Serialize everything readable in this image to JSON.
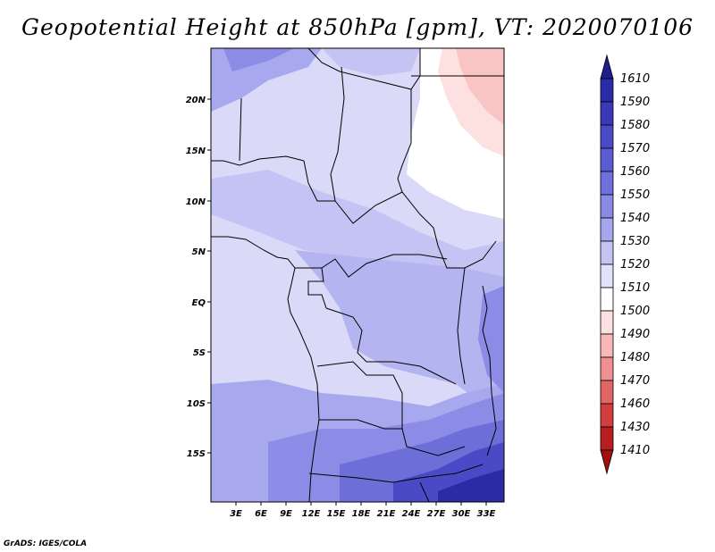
{
  "title": "Geopotential Height at 850hPa [gpm], VT: 2020070106",
  "credit": "GrADS: IGES/COLA",
  "lat_ticks": [
    "20N",
    "15N",
    "10N",
    "5N",
    "EQ",
    "5S",
    "10S",
    "15S"
  ],
  "lon_ticks": [
    "3E",
    "6E",
    "9E",
    "12E",
    "15E",
    "18E",
    "21E",
    "24E",
    "27E",
    "30E",
    "33E"
  ],
  "colorbar": {
    "levels": [
      "1610",
      "1590",
      "1580",
      "1570",
      "1560",
      "1550",
      "1540",
      "1530",
      "1520",
      "1510",
      "1500",
      "1490",
      "1480",
      "1470",
      "1460",
      "1430",
      "1410"
    ],
    "colors": [
      "#1e1e8c",
      "#2b2ba8",
      "#3838b8",
      "#4a4ac6",
      "#5c5cd2",
      "#7070dc",
      "#8a8ae4",
      "#a6a6ec",
      "#c4c4f3",
      "#e2e2fb",
      "#ffffff",
      "#fde0e0",
      "#f8b8b8",
      "#ef9090",
      "#e26666",
      "#d23e3e",
      "#b81e1e",
      "#a01010"
    ]
  },
  "colors": {
    "land_base": "#dadaf8",
    "high": "#2b2ba8",
    "low": "#f8b8b8"
  }
}
